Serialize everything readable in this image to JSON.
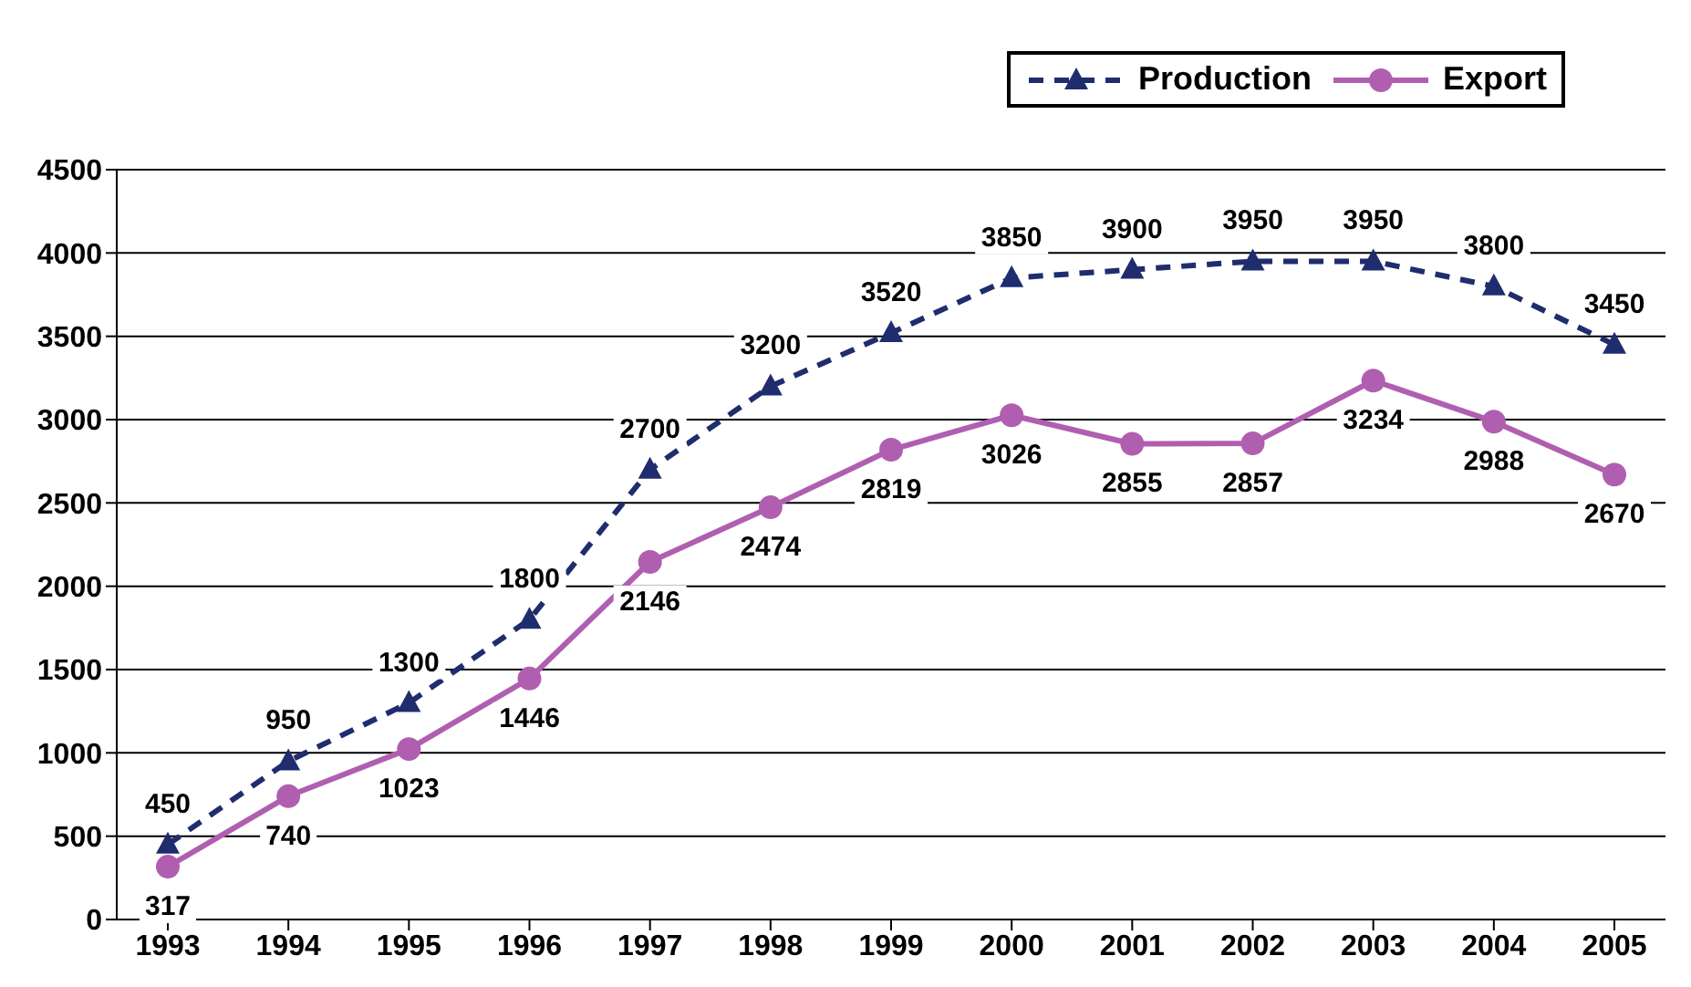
{
  "chart_data": {
    "type": "line",
    "categories": [
      "1993",
      "1994",
      "1995",
      "1996",
      "1997",
      "1998",
      "1999",
      "2000",
      "2001",
      "2002",
      "2003",
      "2004",
      "2005"
    ],
    "series": [
      {
        "name": "Production",
        "color": "#1f2d6e",
        "marker": "triangle",
        "line_style": "dashed",
        "values": [
          450,
          950,
          1300,
          1800,
          2700,
          3200,
          3520,
          3850,
          3900,
          3950,
          3950,
          3800,
          3450
        ]
      },
      {
        "name": "Export",
        "color": "#b05fb0",
        "marker": "circle",
        "line_style": "solid",
        "values": [
          317,
          740,
          1023,
          1446,
          2146,
          2474,
          2819,
          3026,
          2855,
          2857,
          3234,
          2988,
          2670
        ]
      }
    ],
    "ylim": [
      0,
      4500
    ],
    "yticks": [
      0,
      500,
      1000,
      1500,
      2000,
      2500,
      3000,
      3500,
      4000,
      4500
    ],
    "grid": "y",
    "legend": "top right",
    "data_labels": true
  }
}
